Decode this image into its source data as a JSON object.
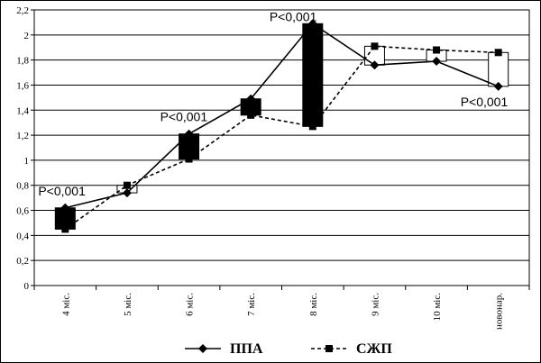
{
  "chart_data": {
    "type": "line",
    "categories": [
      "4 міс.",
      "5 міс.",
      "6 міс.",
      "7 міс.",
      "8 міс.",
      "9 міс.",
      "10 міс.",
      "новонар."
    ],
    "series": [
      {
        "name": "ППА",
        "values": [
          0.62,
          0.74,
          1.21,
          1.49,
          2.09,
          1.76,
          1.79,
          1.59
        ],
        "marker": "diamond",
        "dash": "solid",
        "color": "#000000"
      },
      {
        "name": "СЖП",
        "values": [
          0.45,
          0.8,
          1.01,
          1.36,
          1.27,
          1.91,
          1.88,
          1.86
        ],
        "marker": "square",
        "dash": "dashed",
        "color": "#000000"
      }
    ],
    "ylim": [
      0,
      2.2
    ],
    "y_ticks": [
      "0",
      "0,2",
      "0,4",
      "0,6",
      "0,8",
      "1",
      "1,2",
      "1,4",
      "1,6",
      "1,8",
      "2",
      "2,2"
    ],
    "grid": true,
    "updown_bars": {
      "up_color": "#ffffff",
      "down_color": "#000000"
    },
    "annotations": [
      {
        "text": "P<0,001",
        "category": "4 міс."
      },
      {
        "text": "P<0,001",
        "category": "6 міс."
      },
      {
        "text": "P<0,001",
        "category": "8 міс."
      },
      {
        "text": "P<0,001",
        "category": "новонар."
      }
    ],
    "legend_position": "bottom"
  }
}
